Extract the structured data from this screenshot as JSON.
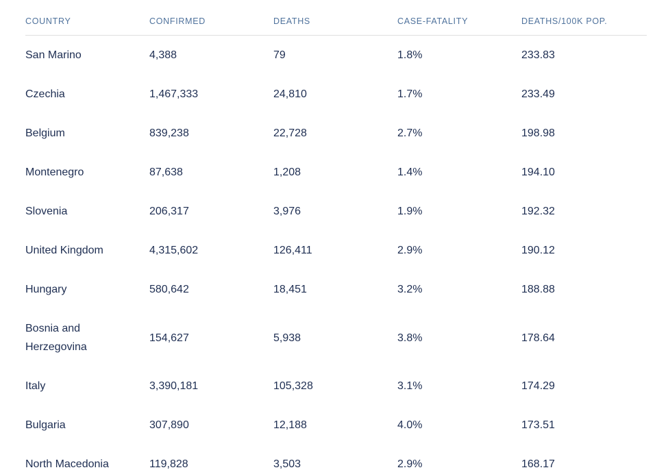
{
  "chart_data": {
    "type": "table",
    "columns": [
      "COUNTRY",
      "CONFIRMED",
      "DEATHS",
      "CASE-FATALITY",
      "DEATHS/100K POP."
    ],
    "rows": [
      {
        "country": "San Marino",
        "confirmed": "4,388",
        "deaths": "79",
        "case_fatality": "1.8%",
        "deaths_per_100k": "233.83"
      },
      {
        "country": "Czechia",
        "confirmed": "1,467,333",
        "deaths": "24,810",
        "case_fatality": "1.7%",
        "deaths_per_100k": "233.49"
      },
      {
        "country": "Belgium",
        "confirmed": "839,238",
        "deaths": "22,728",
        "case_fatality": "2.7%",
        "deaths_per_100k": "198.98"
      },
      {
        "country": "Montenegro",
        "confirmed": "87,638",
        "deaths": "1,208",
        "case_fatality": "1.4%",
        "deaths_per_100k": "194.10"
      },
      {
        "country": "Slovenia",
        "confirmed": "206,317",
        "deaths": "3,976",
        "case_fatality": "1.9%",
        "deaths_per_100k": "192.32"
      },
      {
        "country": "United Kingdom",
        "confirmed": "4,315,602",
        "deaths": "126,411",
        "case_fatality": "2.9%",
        "deaths_per_100k": "190.12"
      },
      {
        "country": "Hungary",
        "confirmed": "580,642",
        "deaths": "18,451",
        "case_fatality": "3.2%",
        "deaths_per_100k": "188.88"
      },
      {
        "country": "Bosnia and Herzegovina",
        "confirmed": "154,627",
        "deaths": "5,938",
        "case_fatality": "3.8%",
        "deaths_per_100k": "178.64"
      },
      {
        "country": "Italy",
        "confirmed": "3,390,181",
        "deaths": "105,328",
        "case_fatality": "3.1%",
        "deaths_per_100k": "174.29"
      },
      {
        "country": "Bulgaria",
        "confirmed": "307,890",
        "deaths": "12,188",
        "case_fatality": "4.0%",
        "deaths_per_100k": "173.51"
      },
      {
        "country": "North Macedonia",
        "confirmed": "119,828",
        "deaths": "3,503",
        "case_fatality": "2.9%",
        "deaths_per_100k": "168.17"
      }
    ]
  },
  "colors": {
    "header_text": "#4f729c",
    "body_text": "#1e2e52",
    "divider": "#dfdfdf",
    "background": "#ffffff"
  }
}
